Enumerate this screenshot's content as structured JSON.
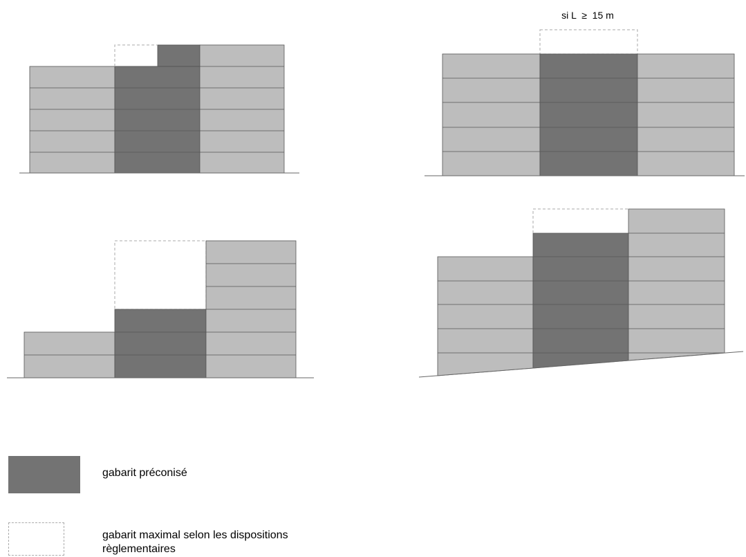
{
  "annotation": {
    "condition_text": "si L  ≥  15 m"
  },
  "legend": {
    "recommended": {
      "label": "gabarit préconisé"
    },
    "maximum": {
      "line1": "gabarit maximal selon les dispositions",
      "line2": "règlementaires"
    }
  },
  "colors": {
    "dark": "#737373",
    "light": "#bdbdbd",
    "stroke": "#555555",
    "dashed": "#aaaaaa",
    "ground": "#666666"
  }
}
